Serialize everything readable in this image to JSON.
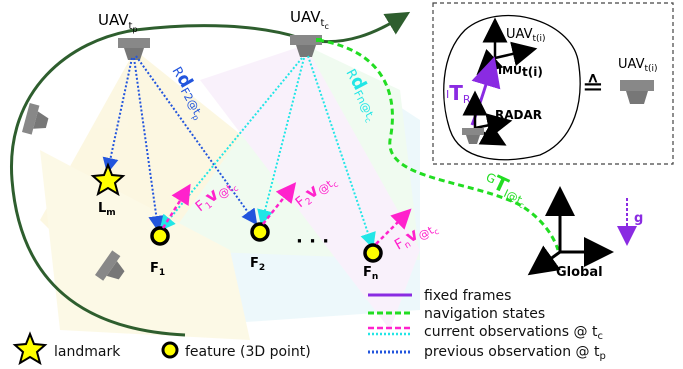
{
  "uav_tp": {
    "base": "UAV",
    "sub": "t",
    "subsub": "p"
  },
  "uav_tc": {
    "base": "UAV",
    "sub": "t",
    "subsub": "c"
  },
  "landmark": {
    "base": "L",
    "sub": "m"
  },
  "features": [
    {
      "base": "F",
      "sub": "1"
    },
    {
      "base": "F",
      "sub": "2"
    },
    {
      "base": "F",
      "sub": "n"
    }
  ],
  "ellipsis": "· · ·",
  "prev_obs_label": {
    "pre": "R",
    "main": "d",
    "sub": "F2@t",
    "subsub": "p"
  },
  "curr_obs_label_fn": {
    "pre": "R",
    "main": "d",
    "sub": "Fn@t",
    "subsub": "c"
  },
  "velocity_labels": [
    {
      "pre": "F",
      "presub": "1",
      "main": "v",
      "sub": "@t",
      "subsub": "c"
    },
    {
      "pre": "F",
      "presub": "2",
      "main": "v",
      "sub": "@t",
      "subsub": "c"
    },
    {
      "pre": "F",
      "presub": "n",
      "main": "v",
      "sub": "@t",
      "subsub": "c"
    }
  ],
  "global_transform": {
    "pre": "G",
    "main": "T",
    "sub": "I@t",
    "subsub": "c"
  },
  "global_label": "Global",
  "gravity_label": "g",
  "inset": {
    "uav_label": {
      "base": "UAV",
      "sub": "t(i)"
    },
    "uav_label_right": {
      "base": "UAV",
      "sub": "t(i)"
    },
    "imu_label": {
      "base": "IMU",
      "sub": "t(i)"
    },
    "radar_label": "RADAR",
    "rotation_label": {
      "pre": "I",
      "main": "T",
      "sub": "R"
    },
    "equiv_symbol": "≙"
  },
  "legend_right": [
    {
      "label": "fixed frames",
      "color": "#8a2be2",
      "style": "solid"
    },
    {
      "label": "navigation states",
      "color": "#22dd22",
      "style": "dashed"
    },
    {
      "label": "current observations @ t",
      "sub": "c",
      "color": "#ff22cc",
      "color2": "#22e6e6",
      "style": "dashed-double"
    },
    {
      "label": "previous observation @ t",
      "sub": "p",
      "color": "#2255dd",
      "style": "dotted"
    }
  ],
  "legend_bottom": [
    {
      "label": "landmark",
      "icon": "star-icon"
    },
    {
      "label": "feature (3D point)",
      "icon": "feature-dot-icon"
    }
  ],
  "colors": {
    "trajectory": "#2e5e2e",
    "fixed": "#8a2be2",
    "navigation": "#22dd22",
    "current_a": "#ff22cc",
    "current_b": "#22e6e6",
    "previous": "#2255dd",
    "star": "#ffff00",
    "feature_fill": "#ffff00"
  }
}
